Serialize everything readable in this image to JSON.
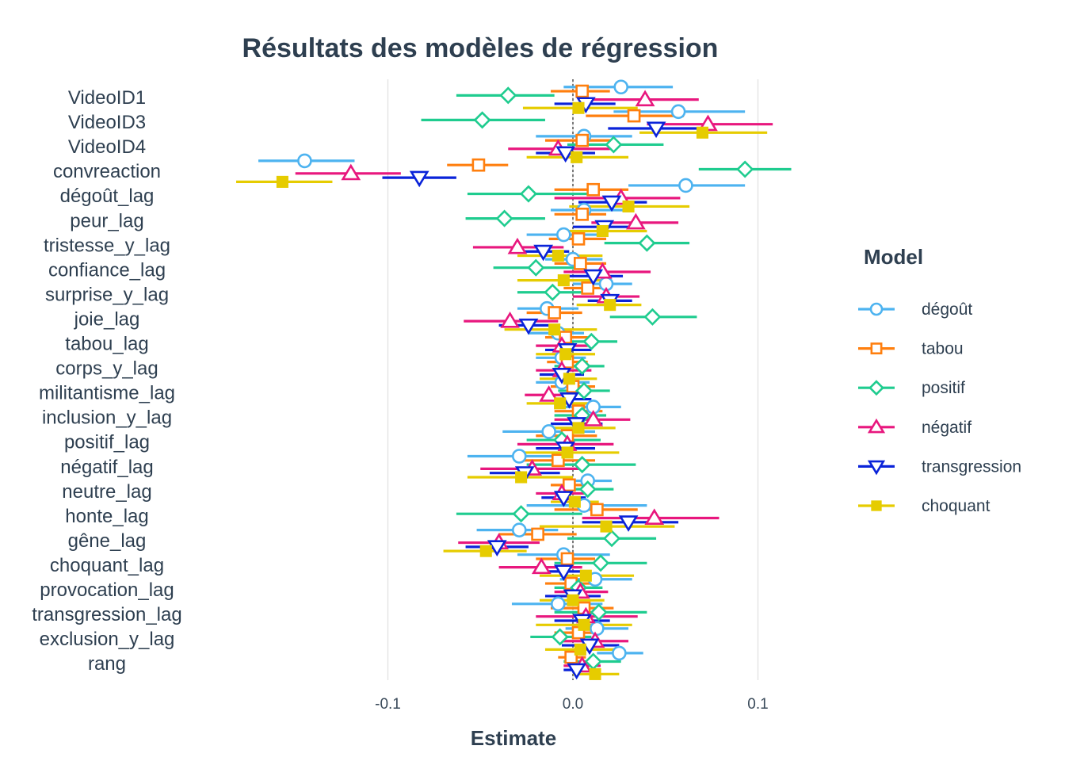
{
  "chart_data": {
    "type": "scatter",
    "subtype": "coefficient-plot with horizontal confidence intervals",
    "title": "Résultats des modèles de régression",
    "xlabel": "Estimate",
    "ylabel": "",
    "xlim": [
      -0.185,
      0.13
    ],
    "x_ticks": [
      -0.1,
      0.0,
      0.1
    ],
    "x_tick_labels": [
      "-0.1",
      "0.0",
      "0.1"
    ],
    "reference_line": 0,
    "grid": "vertical major gridlines",
    "legend_title": "Model",
    "legend_position": "right",
    "terms": [
      "VideoID1",
      "VideoID3",
      "VideoID4",
      "convreaction",
      "dégoût_lag",
      "peur_lag",
      "tristesse_y_lag",
      "confiance_lag",
      "surprise_y_lag",
      "joie_lag",
      "tabou_lag",
      "corps_y_lag",
      "militantisme_lag",
      "inclusion_y_lag",
      "positif_lag",
      "négatif_lag",
      "neutre_lag",
      "honte_lag",
      "gêne_lag",
      "choquant_lag",
      "provocation_lag",
      "transgression_lag",
      "exclusion_y_lag",
      "rang"
    ],
    "series": [
      {
        "name": "dégoût",
        "color": "#4db3f0",
        "shape": "circle",
        "estimate": [
          0.026,
          0.057,
          0.006,
          -0.145,
          0.061,
          0.006,
          -0.005,
          0.0,
          0.018,
          -0.014,
          -0.008,
          -0.006,
          -0.006,
          0.011,
          -0.013,
          -0.029,
          0.008,
          0.006,
          -0.029,
          -0.005,
          0.012,
          -0.008,
          0.013,
          0.025
        ],
        "low": [
          -0.005,
          0.022,
          -0.02,
          -0.17,
          0.03,
          -0.012,
          -0.025,
          -0.015,
          0.0,
          -0.03,
          -0.024,
          -0.02,
          -0.02,
          -0.004,
          -0.038,
          -0.057,
          -0.005,
          -0.025,
          -0.052,
          -0.03,
          -0.007,
          -0.033,
          -0.004,
          0.013
        ],
        "high": [
          0.054,
          0.093,
          0.032,
          -0.118,
          0.093,
          0.027,
          0.013,
          0.016,
          0.032,
          0.003,
          0.006,
          0.007,
          0.009,
          0.026,
          0.012,
          -0.003,
          0.021,
          0.04,
          -0.008,
          0.02,
          0.032,
          0.016,
          0.03,
          0.038
        ]
      },
      {
        "name": "tabou",
        "color": "#ff7f0e",
        "shape": "square",
        "estimate": [
          0.005,
          0.033,
          0.005,
          -0.051,
          0.011,
          0.005,
          0.003,
          0.004,
          0.008,
          -0.01,
          -0.004,
          -0.003,
          0.0,
          0.003,
          -0.003,
          -0.008,
          -0.002,
          0.013,
          -0.019,
          -0.003,
          -0.001,
          0.006,
          0.003,
          -0.001
        ],
        "low": [
          -0.012,
          0.007,
          -0.015,
          -0.068,
          -0.01,
          -0.01,
          -0.013,
          -0.01,
          -0.005,
          -0.025,
          -0.015,
          -0.014,
          -0.012,
          -0.01,
          -0.02,
          -0.03,
          -0.012,
          -0.01,
          -0.04,
          -0.02,
          -0.015,
          -0.012,
          -0.01,
          -0.008
        ],
        "high": [
          0.02,
          0.06,
          0.022,
          -0.035,
          0.03,
          0.018,
          0.018,
          0.018,
          0.02,
          0.005,
          0.008,
          0.008,
          0.012,
          0.016,
          0.013,
          0.012,
          0.01,
          0.035,
          0.002,
          0.012,
          0.014,
          0.022,
          0.015,
          0.007
        ]
      },
      {
        "name": "positif",
        "color": "#1fcc8f",
        "shape": "diamond",
        "estimate": [
          -0.035,
          -0.049,
          0.022,
          0.093,
          -0.024,
          -0.037,
          0.04,
          -0.02,
          -0.011,
          0.043,
          0.01,
          0.005,
          0.006,
          0.005,
          -0.006,
          0.005,
          0.008,
          -0.028,
          0.021,
          0.015,
          0.003,
          0.014,
          -0.007,
          0.011
        ],
        "low": [
          -0.063,
          -0.082,
          -0.003,
          0.068,
          -0.057,
          -0.058,
          0.017,
          -0.043,
          -0.03,
          0.02,
          -0.005,
          -0.01,
          -0.008,
          -0.01,
          -0.025,
          -0.025,
          -0.007,
          -0.063,
          -0.003,
          -0.01,
          -0.01,
          -0.01,
          -0.023,
          -0.005
        ],
        "high": [
          -0.01,
          -0.015,
          0.049,
          0.118,
          0.01,
          -0.015,
          0.063,
          0.003,
          0.01,
          0.067,
          0.024,
          0.017,
          0.02,
          0.018,
          0.015,
          0.034,
          0.022,
          0.005,
          0.045,
          0.04,
          0.016,
          0.04,
          0.01,
          0.026
        ]
      },
      {
        "name": "négatif",
        "color": "#e8177e",
        "shape": "triangle-up",
        "estimate": [
          0.039,
          0.073,
          -0.008,
          -0.12,
          0.026,
          0.034,
          -0.03,
          0.016,
          0.018,
          -0.034,
          -0.006,
          -0.006,
          -0.013,
          0.011,
          -0.003,
          -0.022,
          -0.006,
          0.044,
          -0.04,
          -0.017,
          0.004,
          0.007,
          0.012,
          0.005
        ],
        "low": [
          0.01,
          0.04,
          -0.035,
          -0.15,
          -0.01,
          0.01,
          -0.054,
          -0.005,
          0.0,
          -0.059,
          -0.02,
          -0.02,
          -0.026,
          -0.01,
          -0.03,
          -0.05,
          -0.02,
          0.005,
          -0.062,
          -0.04,
          -0.01,
          -0.02,
          -0.008,
          -0.005
        ],
        "high": [
          0.068,
          0.108,
          0.02,
          -0.093,
          0.058,
          0.057,
          -0.005,
          0.042,
          0.036,
          -0.008,
          0.008,
          0.01,
          0.001,
          0.031,
          0.022,
          0.004,
          0.007,
          0.079,
          -0.018,
          0.005,
          0.019,
          0.035,
          0.03,
          0.015
        ]
      },
      {
        "name": "transgression",
        "color": "#0a23d9",
        "shape": "triangle-down",
        "estimate": [
          0.007,
          0.045,
          -0.004,
          -0.083,
          0.021,
          0.017,
          -0.016,
          0.011,
          0.02,
          -0.024,
          -0.003,
          -0.006,
          -0.002,
          0.002,
          -0.004,
          -0.026,
          -0.005,
          0.03,
          -0.041,
          -0.005,
          0.0,
          0.005,
          0.009,
          0.002
        ],
        "low": [
          -0.01,
          0.019,
          -0.02,
          -0.103,
          0.003,
          0.0,
          -0.03,
          -0.005,
          0.008,
          -0.04,
          -0.015,
          -0.018,
          -0.015,
          -0.012,
          -0.02,
          -0.045,
          -0.017,
          0.005,
          -0.058,
          -0.02,
          -0.015,
          -0.01,
          -0.006,
          -0.005
        ],
        "high": [
          0.023,
          0.07,
          0.012,
          -0.063,
          0.04,
          0.035,
          -0.002,
          0.027,
          0.032,
          -0.008,
          0.01,
          0.006,
          0.01,
          0.016,
          0.012,
          -0.007,
          0.007,
          0.057,
          -0.024,
          0.01,
          0.015,
          0.02,
          0.025,
          0.01
        ]
      },
      {
        "name": "choquant",
        "color": "#e6cc00",
        "shape": "square-filled",
        "estimate": [
          0.003,
          0.07,
          0.002,
          -0.157,
          0.03,
          0.016,
          -0.008,
          -0.005,
          0.02,
          -0.01,
          -0.004,
          -0.002,
          -0.007,
          0.003,
          -0.003,
          -0.028,
          0.001,
          0.018,
          -0.047,
          0.007,
          0.0,
          0.006,
          0.004,
          0.012
        ],
        "low": [
          -0.027,
          0.036,
          -0.025,
          -0.182,
          -0.002,
          -0.007,
          -0.03,
          -0.03,
          0.002,
          -0.037,
          -0.02,
          -0.018,
          -0.025,
          -0.016,
          -0.03,
          -0.057,
          -0.012,
          -0.018,
          -0.07,
          -0.018,
          -0.018,
          -0.02,
          -0.015,
          0.0
        ],
        "high": [
          0.035,
          0.105,
          0.03,
          -0.13,
          0.063,
          0.04,
          0.016,
          0.02,
          0.037,
          0.013,
          0.012,
          0.013,
          0.011,
          0.023,
          0.025,
          0.0,
          0.014,
          0.055,
          -0.025,
          0.033,
          0.017,
          0.032,
          0.023,
          0.025
        ]
      }
    ]
  }
}
